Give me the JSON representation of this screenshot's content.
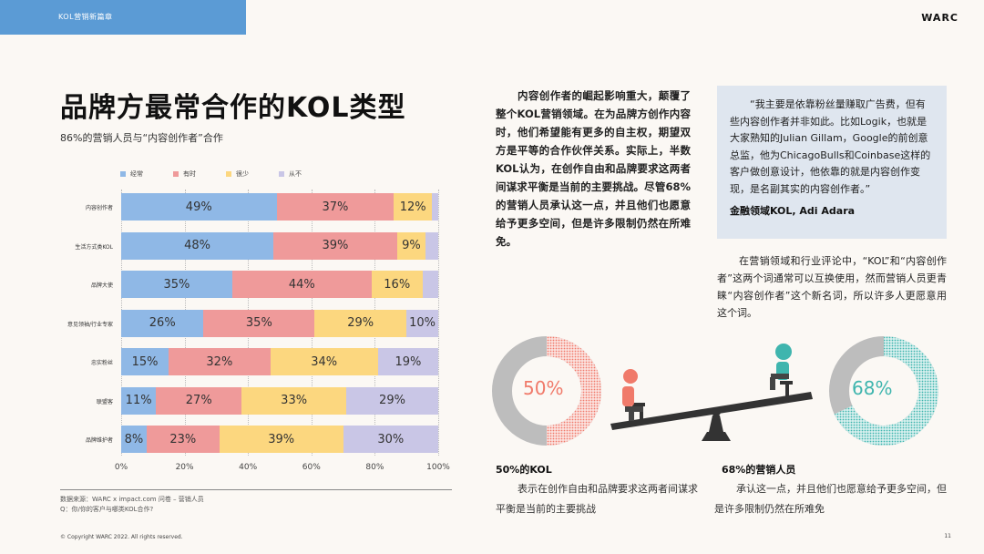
{
  "header": {
    "tag": "KOL营销新篇章",
    "brand": "WARC"
  },
  "title": "品牌方最常合作的KOL类型",
  "subtitle": "86%的营销人员与“内容创作者”合作",
  "legend": [
    {
      "label": "经常",
      "color": "#8fb8e6"
    },
    {
      "label": "有时",
      "color": "#ef9a9a"
    },
    {
      "label": "很少",
      "color": "#fcd77f"
    },
    {
      "label": "从不",
      "color": "#c9c6e6"
    }
  ],
  "chart_data": {
    "type": "bar",
    "orientation": "horizontal-stacked",
    "categories": [
      "内容创作者",
      "生活方式类KOL",
      "品牌大使",
      "意见领袖/行业专家",
      "忠实粉丝",
      "联盟客",
      "品牌维护者"
    ],
    "series": [
      {
        "name": "经常",
        "values": [
          49,
          48,
          35,
          26,
          15,
          11,
          8
        ]
      },
      {
        "name": "有时",
        "values": [
          37,
          39,
          44,
          35,
          32,
          27,
          23
        ]
      },
      {
        "name": "很少",
        "values": [
          12,
          9,
          16,
          29,
          34,
          33,
          39
        ]
      },
      {
        "name": "从不",
        "values": [
          2,
          4,
          5,
          10,
          19,
          29,
          30
        ]
      }
    ],
    "data_labels": [
      [
        "49%",
        "37%",
        "12%",
        ""
      ],
      [
        "48%",
        "39%",
        "9%",
        ""
      ],
      [
        "35%",
        "44%",
        "16%",
        ""
      ],
      [
        "26%",
        "35%",
        "29%",
        "10%"
      ],
      [
        "15%",
        "32%",
        "34%",
        "19%"
      ],
      [
        "11%",
        "27%",
        "33%",
        "29%"
      ],
      [
        "8%",
        "23%",
        "39%",
        "30%"
      ]
    ],
    "xticks": [
      "0%",
      "20%",
      "40%",
      "60%",
      "80%",
      "100%"
    ],
    "xlim": [
      0,
      100
    ],
    "grid": true,
    "legend_position": "top"
  },
  "source": {
    "line1": "数据来源：WARC x impact.com 问卷 – 营销人员",
    "line2": "Q：你/你的客户与哪类KOL合作?"
  },
  "copyright": "© Copyright WARC 2022. All rights reserved.",
  "page_number": "11",
  "intro": "内容创作者的崛起影响重大，颠覆了整个KOL营销领域。在为品牌方创作内容时，他们希望能有更多的自主权，期望双方是平等的合作伙伴关系。实际上，半数KOL认为，在创作自由和品牌要求这两者间谋求平衡是当前的主要挑战。尽管68%的营销人员承认这一点，并且他们也愿意给予更多空间，但是许多限制仍然在所难免。",
  "quote": {
    "text": "“我主要是依靠粉丝量赚取广告费，但有些内容创作者并非如此。比如Logik，也就是大家熟知的Julian Gillam，Google的前创意总监，他为ChicagoBulls和Coinbase这样的客户做创意设计，他依靠的就是内容创作变现，是名副其实的内容创作者。”",
    "author": "金融领域KOL, Adi Adara"
  },
  "note": "在营销领域和行业评论中，“KOL”和“内容创作者”这两个词通常可以互换使用，然而营销人员更青睐“内容创作者”这个新名词，所以许多人更愿意用这个词。",
  "stats": [
    {
      "value": "50%",
      "fraction": 0.5,
      "color": "#f07a6a",
      "head": "50%的KOL",
      "body": "表示在创作自由和品牌要求这两者间谋求平衡是当前的主要挑战"
    },
    {
      "value": "68%",
      "fraction": 0.68,
      "color": "#3fb5ae",
      "head": "68%的营销人员",
      "body": "承认这一点，并且他们也愿意给予更多空间，但是许多限制仍然在所难免"
    }
  ]
}
